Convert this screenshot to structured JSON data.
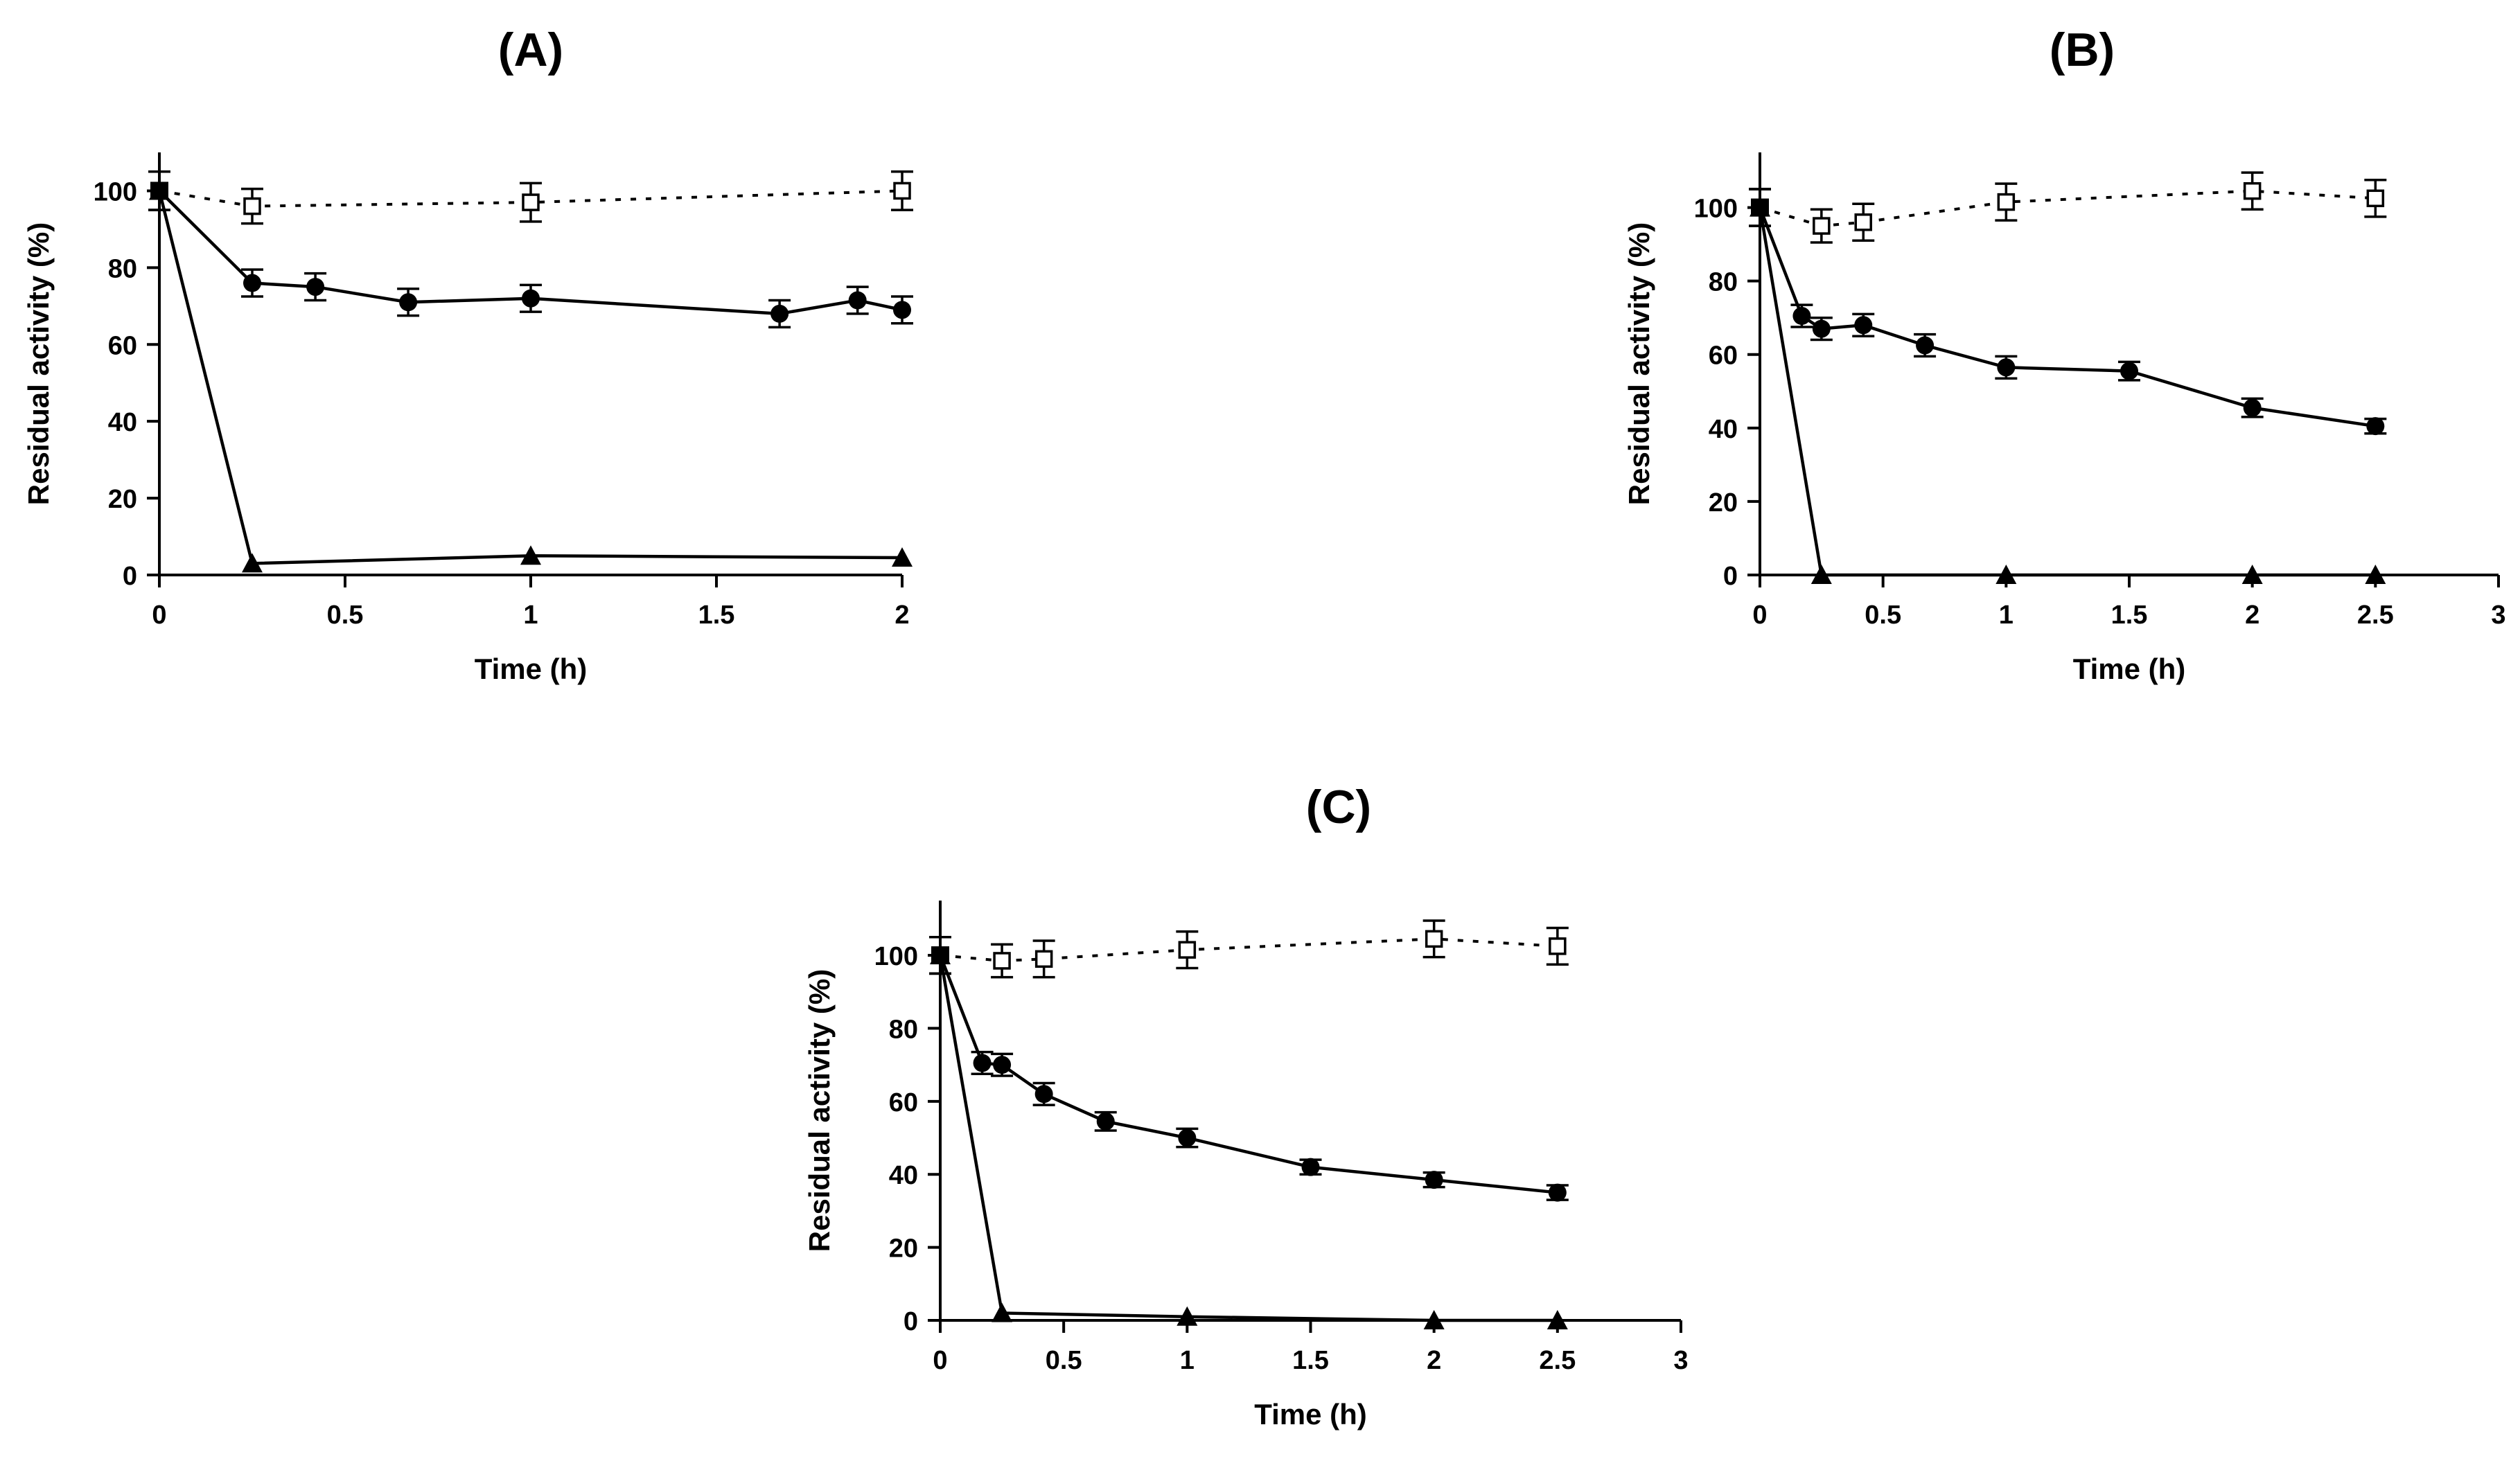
{
  "chart_data": [
    {
      "type": "line",
      "title": "(A)",
      "xlabel": "Time (h)",
      "ylabel": "Residual activity (%)",
      "xlim": [
        0,
        2
      ],
      "ylim": [
        0,
        110
      ],
      "xticks": [
        0,
        0.5,
        1,
        1.5,
        2
      ],
      "xtick_labels": [
        "0",
        "0.5",
        "1",
        "1.5",
        "2"
      ],
      "yticks": [
        0,
        20,
        40,
        60,
        80,
        100
      ],
      "ytick_labels": [
        "0",
        "20",
        "40",
        "60",
        "80",
        "100"
      ],
      "grid": false,
      "series": [
        {
          "name": "open-square",
          "marker": "open-square",
          "line": "dotted",
          "x": [
            0,
            0.25,
            1,
            2
          ],
          "y": [
            100,
            96,
            97,
            100
          ],
          "err": [
            5,
            4.5,
            5,
            5
          ]
        },
        {
          "name": "filled-circle",
          "marker": "filled-circle",
          "line": "solid",
          "x": [
            0,
            0.25,
            0.42,
            0.67,
            1,
            1.67,
            1.88,
            2
          ],
          "y": [
            100,
            76,
            75,
            71,
            72,
            68,
            71.5,
            69
          ],
          "err": [
            5,
            3.5,
            3.5,
            3.5,
            3.5,
            3.5,
            3.5,
            3.5
          ]
        },
        {
          "name": "filled-triangle",
          "marker": "filled-triangle",
          "line": "solid",
          "x": [
            0,
            0.25,
            1,
            2
          ],
          "y": [
            100,
            3,
            5,
            4.5
          ],
          "err": [
            5,
            0,
            0,
            0
          ]
        }
      ]
    },
    {
      "type": "line",
      "title": "(B)",
      "xlabel": "Time (h)",
      "ylabel": "Residual activity (%)",
      "xlim": [
        0,
        3
      ],
      "ylim": [
        0,
        115
      ],
      "xticks": [
        0,
        0.5,
        1,
        1.5,
        2,
        2.5,
        3
      ],
      "xtick_labels": [
        "0",
        "0.5",
        "1",
        "1.5",
        "2",
        "2.5",
        "3"
      ],
      "yticks": [
        0,
        20,
        40,
        60,
        80,
        100
      ],
      "ytick_labels": [
        "0",
        "20",
        "40",
        "60",
        "80",
        "100"
      ],
      "grid": false,
      "series": [
        {
          "name": "open-square",
          "marker": "open-square",
          "line": "dotted",
          "x": [
            0,
            0.25,
            0.42,
            1,
            2,
            2.5
          ],
          "y": [
            100,
            95,
            96,
            101.5,
            104.5,
            102.5
          ],
          "err": [
            5,
            4.5,
            5,
            5,
            5,
            5
          ]
        },
        {
          "name": "filled-circle",
          "marker": "filled-circle",
          "line": "solid",
          "x": [
            0,
            0.17,
            0.25,
            0.42,
            0.67,
            1,
            1.5,
            2,
            2.5
          ],
          "y": [
            100,
            70.5,
            67,
            68,
            62.5,
            56.5,
            55.5,
            45.5,
            40.5
          ],
          "err": [
            5,
            3,
            3,
            3,
            3,
            3,
            2.5,
            2.5,
            2
          ]
        },
        {
          "name": "filled-triangle",
          "marker": "filled-triangle",
          "line": "solid",
          "x": [
            0,
            0.25,
            1,
            2,
            2.5
          ],
          "y": [
            100,
            0,
            0,
            0,
            0
          ],
          "err": [
            5,
            0,
            0,
            0,
            0
          ]
        }
      ]
    },
    {
      "type": "line",
      "title": "(C)",
      "xlabel": "Time (h)",
      "ylabel": "Residual activity (%)",
      "xlim": [
        0,
        3
      ],
      "ylim": [
        0,
        115
      ],
      "xticks": [
        0,
        0.5,
        1,
        1.5,
        2,
        2.5,
        3
      ],
      "xtick_labels": [
        "0",
        "0.5",
        "1",
        "1.5",
        "2",
        "2.5",
        "3"
      ],
      "yticks": [
        0,
        20,
        40,
        60,
        80,
        100
      ],
      "ytick_labels": [
        "0",
        "20",
        "40",
        "60",
        "80",
        "100"
      ],
      "grid": false,
      "series": [
        {
          "name": "open-square",
          "marker": "open-square",
          "line": "dotted",
          "x": [
            0,
            0.25,
            0.42,
            1,
            2,
            2.5
          ],
          "y": [
            100,
            98.5,
            99,
            101.5,
            104.5,
            102.5
          ],
          "err": [
            5,
            4.5,
            5,
            5,
            5,
            5
          ]
        },
        {
          "name": "filled-circle",
          "marker": "filled-circle",
          "line": "solid",
          "x": [
            0,
            0.17,
            0.25,
            0.42,
            0.67,
            1,
            1.5,
            2,
            2.5
          ],
          "y": [
            100,
            70.5,
            70,
            62,
            54.5,
            50,
            42,
            38.5,
            35
          ],
          "err": [
            5,
            3,
            3,
            3,
            2.5,
            2.5,
            2,
            2,
            2
          ]
        },
        {
          "name": "filled-triangle",
          "marker": "filled-triangle",
          "line": "solid",
          "x": [
            0,
            0.25,
            1,
            2,
            2.5
          ],
          "y": [
            100,
            2,
            1,
            0,
            0
          ],
          "err": [
            5,
            0,
            0,
            0,
            0
          ]
        }
      ]
    }
  ]
}
